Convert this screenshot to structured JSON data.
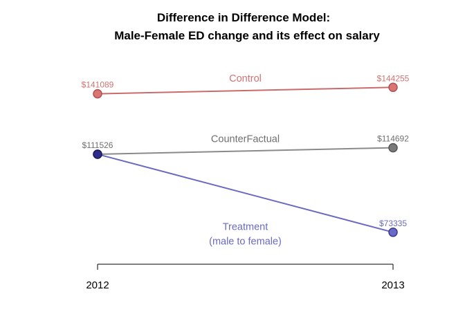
{
  "chart_data": {
    "type": "line",
    "title_lines": [
      "Difference in Difference Model:",
      "Male-Female ED change and its effect on salary"
    ],
    "xlabel": "",
    "ylabel": "",
    "x": [
      "2012",
      "2013"
    ],
    "ylim": [
      60000,
      150000
    ],
    "grid": false,
    "legend": "none",
    "series": [
      {
        "name": "Control",
        "values": [
          141089,
          144255
        ],
        "value_labels": [
          "$141089",
          "$144255"
        ],
        "line_color": "#c96b6b",
        "point_fill": "#d97575",
        "point_stroke": "#b05050",
        "label_color": "#d07373"
      },
      {
        "name": "CounterFactual",
        "values": [
          111526,
          114692
        ],
        "value_labels": [
          "$111526",
          "$114692"
        ],
        "line_color": "#8a8a8a",
        "point_fill": "#7a7a7a",
        "point_stroke": "#555555",
        "label_color": "#6f6f6f"
      },
      {
        "name_lines": [
          "Treatment",
          "(male to female)"
        ],
        "values": [
          111526,
          73335
        ],
        "value_labels": [
          "$111526",
          "$73335"
        ],
        "line_color": "#6a6ac0",
        "point_fill": "#6a6ac8",
        "point_stroke": "#3a3a90",
        "start_point_fill": "#2d2d8c",
        "start_point_stroke": "#1a1a5e",
        "label_color": "#6a6ac0"
      }
    ]
  }
}
